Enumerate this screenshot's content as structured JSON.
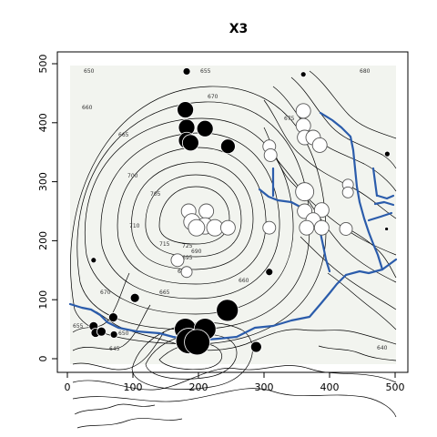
{
  "chart_data": {
    "type": "scatter",
    "title": "X3",
    "xlabel": "",
    "ylabel": "",
    "xlim": [
      0,
      500
    ],
    "ylim": [
      0,
      500
    ],
    "x_ticks": [
      "0",
      "100",
      "200",
      "300",
      "400",
      "500"
    ],
    "y_ticks": [
      "0",
      "100",
      "200",
      "300",
      "400",
      "500"
    ],
    "colors": {
      "positive": "#000000",
      "negative": "#ffffff",
      "river": "#2b5cab",
      "terrain": "#f2f4ef"
    },
    "contour_labels": [
      "650",
      "655",
      "670",
      "680",
      "675",
      "660",
      "665",
      "700",
      "705",
      "710",
      "715",
      "725",
      "690",
      "695",
      "690",
      "670",
      "665",
      "660",
      "655",
      "650",
      "645",
      "640"
    ],
    "points": [
      {
        "x": 182,
        "y": 487,
        "r": 4,
        "sign": "positive"
      },
      {
        "x": 360,
        "y": 482,
        "r": 3,
        "sign": "positive"
      },
      {
        "x": 488,
        "y": 347,
        "r": 3,
        "sign": "positive"
      },
      {
        "x": 487,
        "y": 220,
        "r": 2,
        "sign": "positive"
      },
      {
        "x": 180,
        "y": 422,
        "r": 9,
        "sign": "positive"
      },
      {
        "x": 210,
        "y": 390,
        "r": 9,
        "sign": "positive"
      },
      {
        "x": 182,
        "y": 392,
        "r": 9,
        "sign": "positive"
      },
      {
        "x": 182,
        "y": 370,
        "r": 9,
        "sign": "positive"
      },
      {
        "x": 188,
        "y": 366,
        "r": 9,
        "sign": "positive"
      },
      {
        "x": 245,
        "y": 360,
        "r": 8,
        "sign": "positive"
      },
      {
        "x": 40,
        "y": 167,
        "r": 3,
        "sign": "positive"
      },
      {
        "x": 308,
        "y": 147,
        "r": 4,
        "sign": "positive"
      },
      {
        "x": 103,
        "y": 103,
        "r": 5,
        "sign": "positive"
      },
      {
        "x": 244,
        "y": 82,
        "r": 12,
        "sign": "positive"
      },
      {
        "x": 70,
        "y": 70,
        "r": 5,
        "sign": "positive"
      },
      {
        "x": 40,
        "y": 55,
        "r": 5,
        "sign": "positive"
      },
      {
        "x": 43,
        "y": 44,
        "r": 5,
        "sign": "positive"
      },
      {
        "x": 52,
        "y": 46,
        "r": 5,
        "sign": "positive"
      },
      {
        "x": 71,
        "y": 41,
        "r": 4,
        "sign": "positive"
      },
      {
        "x": 180,
        "y": 50,
        "r": 12,
        "sign": "positive"
      },
      {
        "x": 210,
        "y": 50,
        "r": 12,
        "sign": "positive"
      },
      {
        "x": 185,
        "y": 30,
        "r": 14,
        "sign": "positive"
      },
      {
        "x": 198,
        "y": 28,
        "r": 14,
        "sign": "positive"
      },
      {
        "x": 288,
        "y": 20,
        "r": 6,
        "sign": "positive"
      },
      {
        "x": 360,
        "y": 420,
        "r": 8,
        "sign": "negative"
      },
      {
        "x": 360,
        "y": 395,
        "r": 8,
        "sign": "negative"
      },
      {
        "x": 362,
        "y": 375,
        "r": 8,
        "sign": "negative"
      },
      {
        "x": 375,
        "y": 375,
        "r": 8,
        "sign": "negative"
      },
      {
        "x": 385,
        "y": 362,
        "r": 8,
        "sign": "negative"
      },
      {
        "x": 308,
        "y": 360,
        "r": 7,
        "sign": "negative"
      },
      {
        "x": 310,
        "y": 345,
        "r": 7,
        "sign": "negative"
      },
      {
        "x": 428,
        "y": 295,
        "r": 6,
        "sign": "negative"
      },
      {
        "x": 428,
        "y": 282,
        "r": 6,
        "sign": "negative"
      },
      {
        "x": 362,
        "y": 283,
        "r": 10,
        "sign": "negative"
      },
      {
        "x": 362,
        "y": 250,
        "r": 8,
        "sign": "negative"
      },
      {
        "x": 388,
        "y": 252,
        "r": 8,
        "sign": "negative"
      },
      {
        "x": 375,
        "y": 235,
        "r": 8,
        "sign": "negative"
      },
      {
        "x": 365,
        "y": 222,
        "r": 8,
        "sign": "negative"
      },
      {
        "x": 388,
        "y": 222,
        "r": 8,
        "sign": "negative"
      },
      {
        "x": 425,
        "y": 220,
        "r": 7,
        "sign": "negative"
      },
      {
        "x": 185,
        "y": 250,
        "r": 8,
        "sign": "negative"
      },
      {
        "x": 212,
        "y": 250,
        "r": 8,
        "sign": "negative"
      },
      {
        "x": 190,
        "y": 232,
        "r": 9,
        "sign": "negative"
      },
      {
        "x": 210,
        "y": 225,
        "r": 9,
        "sign": "negative"
      },
      {
        "x": 225,
        "y": 222,
        "r": 9,
        "sign": "negative"
      },
      {
        "x": 197,
        "y": 222,
        "r": 9,
        "sign": "negative"
      },
      {
        "x": 245,
        "y": 222,
        "r": 8,
        "sign": "negative"
      },
      {
        "x": 308,
        "y": 222,
        "r": 7,
        "sign": "negative"
      },
      {
        "x": 168,
        "y": 167,
        "r": 7,
        "sign": "negative"
      },
      {
        "x": 182,
        "y": 147,
        "r": 6,
        "sign": "negative"
      }
    ]
  }
}
